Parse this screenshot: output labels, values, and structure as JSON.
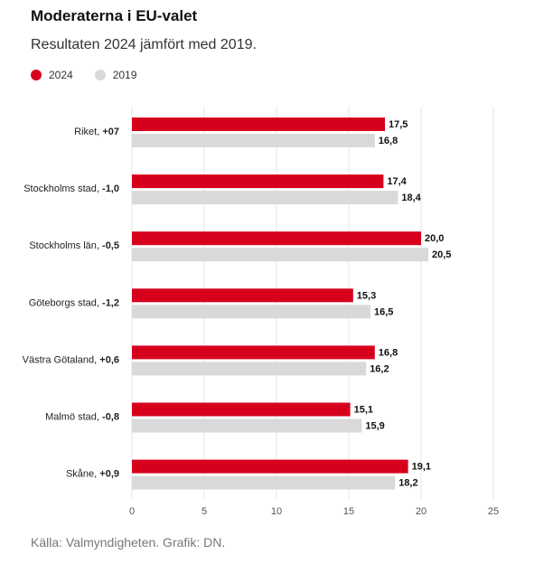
{
  "header": {
    "title": "Moderaterna i EU-valet",
    "subtitle": "Resultaten 2024 jämfört med 2019."
  },
  "footer": {
    "source": "Källa: Valmyndigheten. Grafik: DN."
  },
  "colors": {
    "series_2024": "#d6001c",
    "series_2019": "#d9d9d9",
    "grid": "#e6e6e6"
  },
  "chart_data": {
    "type": "bar",
    "orientation": "horizontal",
    "categories": [
      {
        "name": "Riket",
        "change": "+07"
      },
      {
        "name": "Stockholms stad",
        "change": "-1,0"
      },
      {
        "name": "Stockholms län",
        "change": "-0,5"
      },
      {
        "name": "Göteborgs stad",
        "change": "-1,2"
      },
      {
        "name": "Västra Götaland",
        "change": "+0,6"
      },
      {
        "name": "Malmö stad",
        "change": "-0,8"
      },
      {
        "name": "Skåne",
        "change": "+0,9"
      }
    ],
    "series": [
      {
        "name": "2024",
        "values": [
          17.5,
          17.4,
          20.0,
          15.3,
          16.8,
          15.1,
          19.1
        ],
        "labels": [
          "17,5",
          "17,4",
          "20,0",
          "15,3",
          "16,8",
          "15,1",
          "19,1"
        ]
      },
      {
        "name": "2019",
        "values": [
          16.8,
          18.4,
          20.5,
          16.5,
          16.2,
          15.9,
          18.2
        ],
        "labels": [
          "16,8",
          "18,4",
          "20,5",
          "16,5",
          "16,2",
          "15,9",
          "18,2"
        ]
      }
    ],
    "xlim": [
      0,
      25
    ],
    "xticks": [
      0,
      5,
      10,
      15,
      20,
      25
    ],
    "grid": true,
    "legend": "top-left"
  }
}
